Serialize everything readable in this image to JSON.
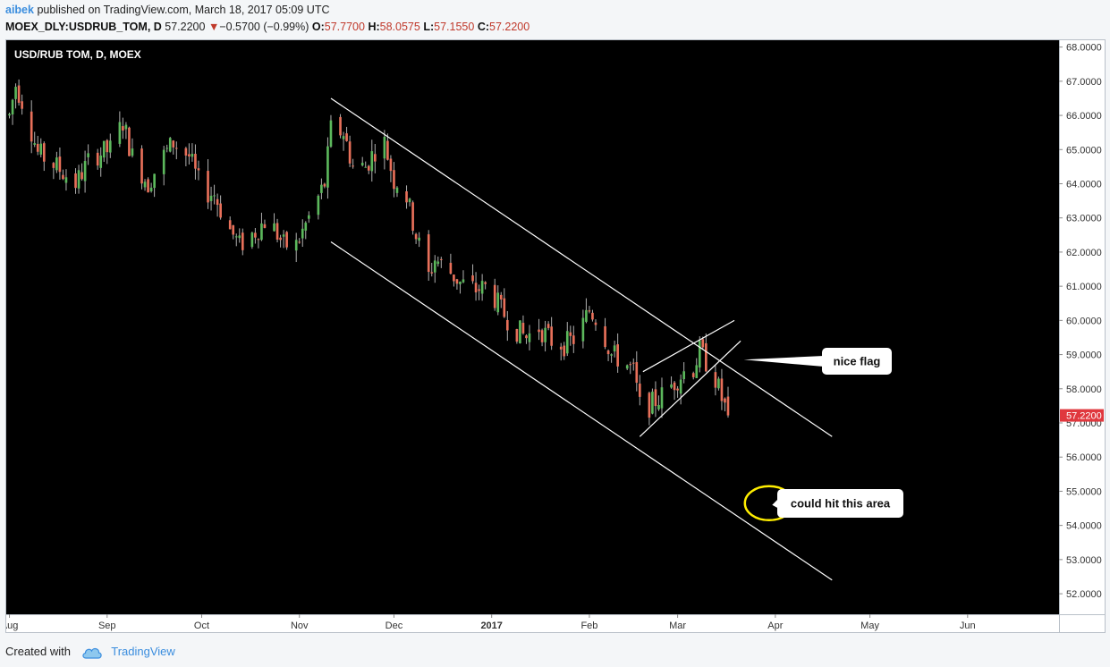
{
  "header": {
    "author": "aibek",
    "published_text": "published on TradingView.com, March 18, 2017 05:09 UTC",
    "symbol": "MOEX_DLY:USDRUB_TOM, D",
    "last_price": "57.2200",
    "change": "−0.5700 (−0.99%)",
    "down_arrow": "▼",
    "open_label": "O:",
    "open": "57.7700",
    "high_label": "H:",
    "high": "58.0575",
    "low_label": "L:",
    "low": "57.1550",
    "close_label": "C:",
    "close": "57.2200"
  },
  "footer": {
    "created_with": "Created with",
    "brand": "TradingView",
    "logo_icon": "cloud-icon"
  },
  "chart_data": {
    "type": "candlestick",
    "title": "USD/RUB TOM, D, MOEX",
    "ylim": [
      51.4,
      68.2
    ],
    "y_ticks": [
      "52.0000",
      "53.0000",
      "54.0000",
      "55.0000",
      "56.0000",
      "57.0000",
      "58.0000",
      "59.0000",
      "60.0000",
      "61.0000",
      "62.0000",
      "63.0000",
      "64.0000",
      "65.0000",
      "66.0000",
      "67.0000",
      "68.0000"
    ],
    "x_range": [
      "2016-07-31",
      "2017-06-30"
    ],
    "x_ticks": [
      {
        "label": "Aug",
        "date": "2016-08-01",
        "bold": false
      },
      {
        "label": "Sep",
        "date": "2016-09-01",
        "bold": false
      },
      {
        "label": "Oct",
        "date": "2016-10-01",
        "bold": false
      },
      {
        "label": "Nov",
        "date": "2016-11-01",
        "bold": false
      },
      {
        "label": "Dec",
        "date": "2016-12-01",
        "bold": false
      },
      {
        "label": "2017",
        "date": "2017-01-01",
        "bold": true
      },
      {
        "label": "Feb",
        "date": "2017-02-01",
        "bold": false
      },
      {
        "label": "Mar",
        "date": "2017-03-01",
        "bold": false
      },
      {
        "label": "Apr",
        "date": "2017-04-01",
        "bold": false
      },
      {
        "label": "May",
        "date": "2017-05-01",
        "bold": false
      },
      {
        "label": "Jun",
        "date": "2017-06-01",
        "bold": false
      }
    ],
    "last_price_label": "57.2200",
    "colors": {
      "background": "#000000",
      "up": "#5cb85c",
      "down": "#e8705a",
      "wick": "#b0b0b0",
      "trendline": "#ffffff",
      "circle": "#ffee00",
      "price_label_bg": "#e0383e"
    },
    "price_path": [
      [
        "2016-08-01",
        66.0
      ],
      [
        "2016-08-03",
        66.9
      ],
      [
        "2016-08-06",
        66.2
      ],
      [
        "2016-08-10",
        64.9
      ],
      [
        "2016-08-16",
        64.5
      ],
      [
        "2016-08-22",
        64.0
      ],
      [
        "2016-08-27",
        64.8
      ],
      [
        "2016-09-02",
        65.0
      ],
      [
        "2016-09-06",
        65.8
      ],
      [
        "2016-09-09",
        64.8
      ],
      [
        "2016-09-14",
        64.0
      ],
      [
        "2016-09-18",
        64.7
      ],
      [
        "2016-09-22",
        65.2
      ],
      [
        "2016-09-27",
        64.8
      ],
      [
        "2016-10-01",
        63.8
      ],
      [
        "2016-10-05",
        63.7
      ],
      [
        "2016-10-09",
        62.8
      ],
      [
        "2016-10-13",
        62.2
      ],
      [
        "2016-10-18",
        62.6
      ],
      [
        "2016-10-22",
        63.0
      ],
      [
        "2016-10-27",
        62.2
      ],
      [
        "2016-10-31",
        62.2
      ],
      [
        "2016-11-04",
        63.0
      ],
      [
        "2016-11-07",
        63.6
      ],
      [
        "2016-11-09",
        64.0
      ],
      [
        "2016-11-11",
        65.6
      ],
      [
        "2016-11-15",
        65.5
      ],
      [
        "2016-11-18",
        64.5
      ],
      [
        "2016-11-22",
        64.5
      ],
      [
        "2016-11-25",
        65.0
      ],
      [
        "2016-11-28",
        65.2
      ],
      [
        "2016-12-01",
        64.1
      ],
      [
        "2016-12-04",
        64.0
      ],
      [
        "2016-12-08",
        62.5
      ],
      [
        "2016-12-12",
        61.3
      ],
      [
        "2016-12-14",
        61.8
      ],
      [
        "2016-12-18",
        61.5
      ],
      [
        "2016-12-22",
        61.1
      ],
      [
        "2016-12-27",
        60.9
      ],
      [
        "2016-12-31",
        61.0
      ],
      [
        "2017-01-04",
        60.3
      ],
      [
        "2017-01-08",
        59.8
      ],
      [
        "2017-01-12",
        59.5
      ],
      [
        "2017-01-16",
        59.8
      ],
      [
        "2017-01-20",
        59.4
      ],
      [
        "2017-01-24",
        59.3
      ],
      [
        "2017-01-28",
        59.5
      ],
      [
        "2017-02-01",
        60.3
      ],
      [
        "2017-02-04",
        60.0
      ],
      [
        "2017-02-08",
        59.0
      ],
      [
        "2017-02-12",
        58.8
      ],
      [
        "2017-02-15",
        58.5
      ],
      [
        "2017-02-17",
        57.5
      ],
      [
        "2017-02-20",
        57.5
      ],
      [
        "2017-02-24",
        57.8
      ],
      [
        "2017-02-28",
        58.2
      ],
      [
        "2017-03-03",
        58.5
      ],
      [
        "2017-03-06",
        58.6
      ],
      [
        "2017-03-08",
        59.1
      ],
      [
        "2017-03-10",
        58.8
      ],
      [
        "2017-03-13",
        58.3
      ],
      [
        "2017-03-15",
        57.7
      ],
      [
        "2017-03-17",
        57.22
      ]
    ],
    "drawings": {
      "channel_upper": {
        "from": [
          "2016-11-11",
          66.5
        ],
        "to": [
          "2017-04-19",
          56.6
        ]
      },
      "channel_lower": {
        "from": [
          "2016-11-11",
          62.3
        ],
        "to": [
          "2017-04-19",
          52.4
        ]
      },
      "flag_upper": {
        "from": [
          "2017-02-18",
          58.5
        ],
        "to": [
          "2017-03-19",
          60.0
        ]
      },
      "flag_lower": {
        "from": [
          "2017-02-17",
          56.6
        ],
        "to": [
          "2017-03-21",
          59.4
        ]
      },
      "circle_center": [
        "2017-03-30",
        54.65
      ]
    },
    "annotations": [
      {
        "text": "nice flag",
        "anchor": [
          "2017-03-22",
          58.85
        ]
      },
      {
        "text": "could hit this area",
        "anchor": [
          "2017-03-31",
          54.6
        ]
      }
    ]
  }
}
